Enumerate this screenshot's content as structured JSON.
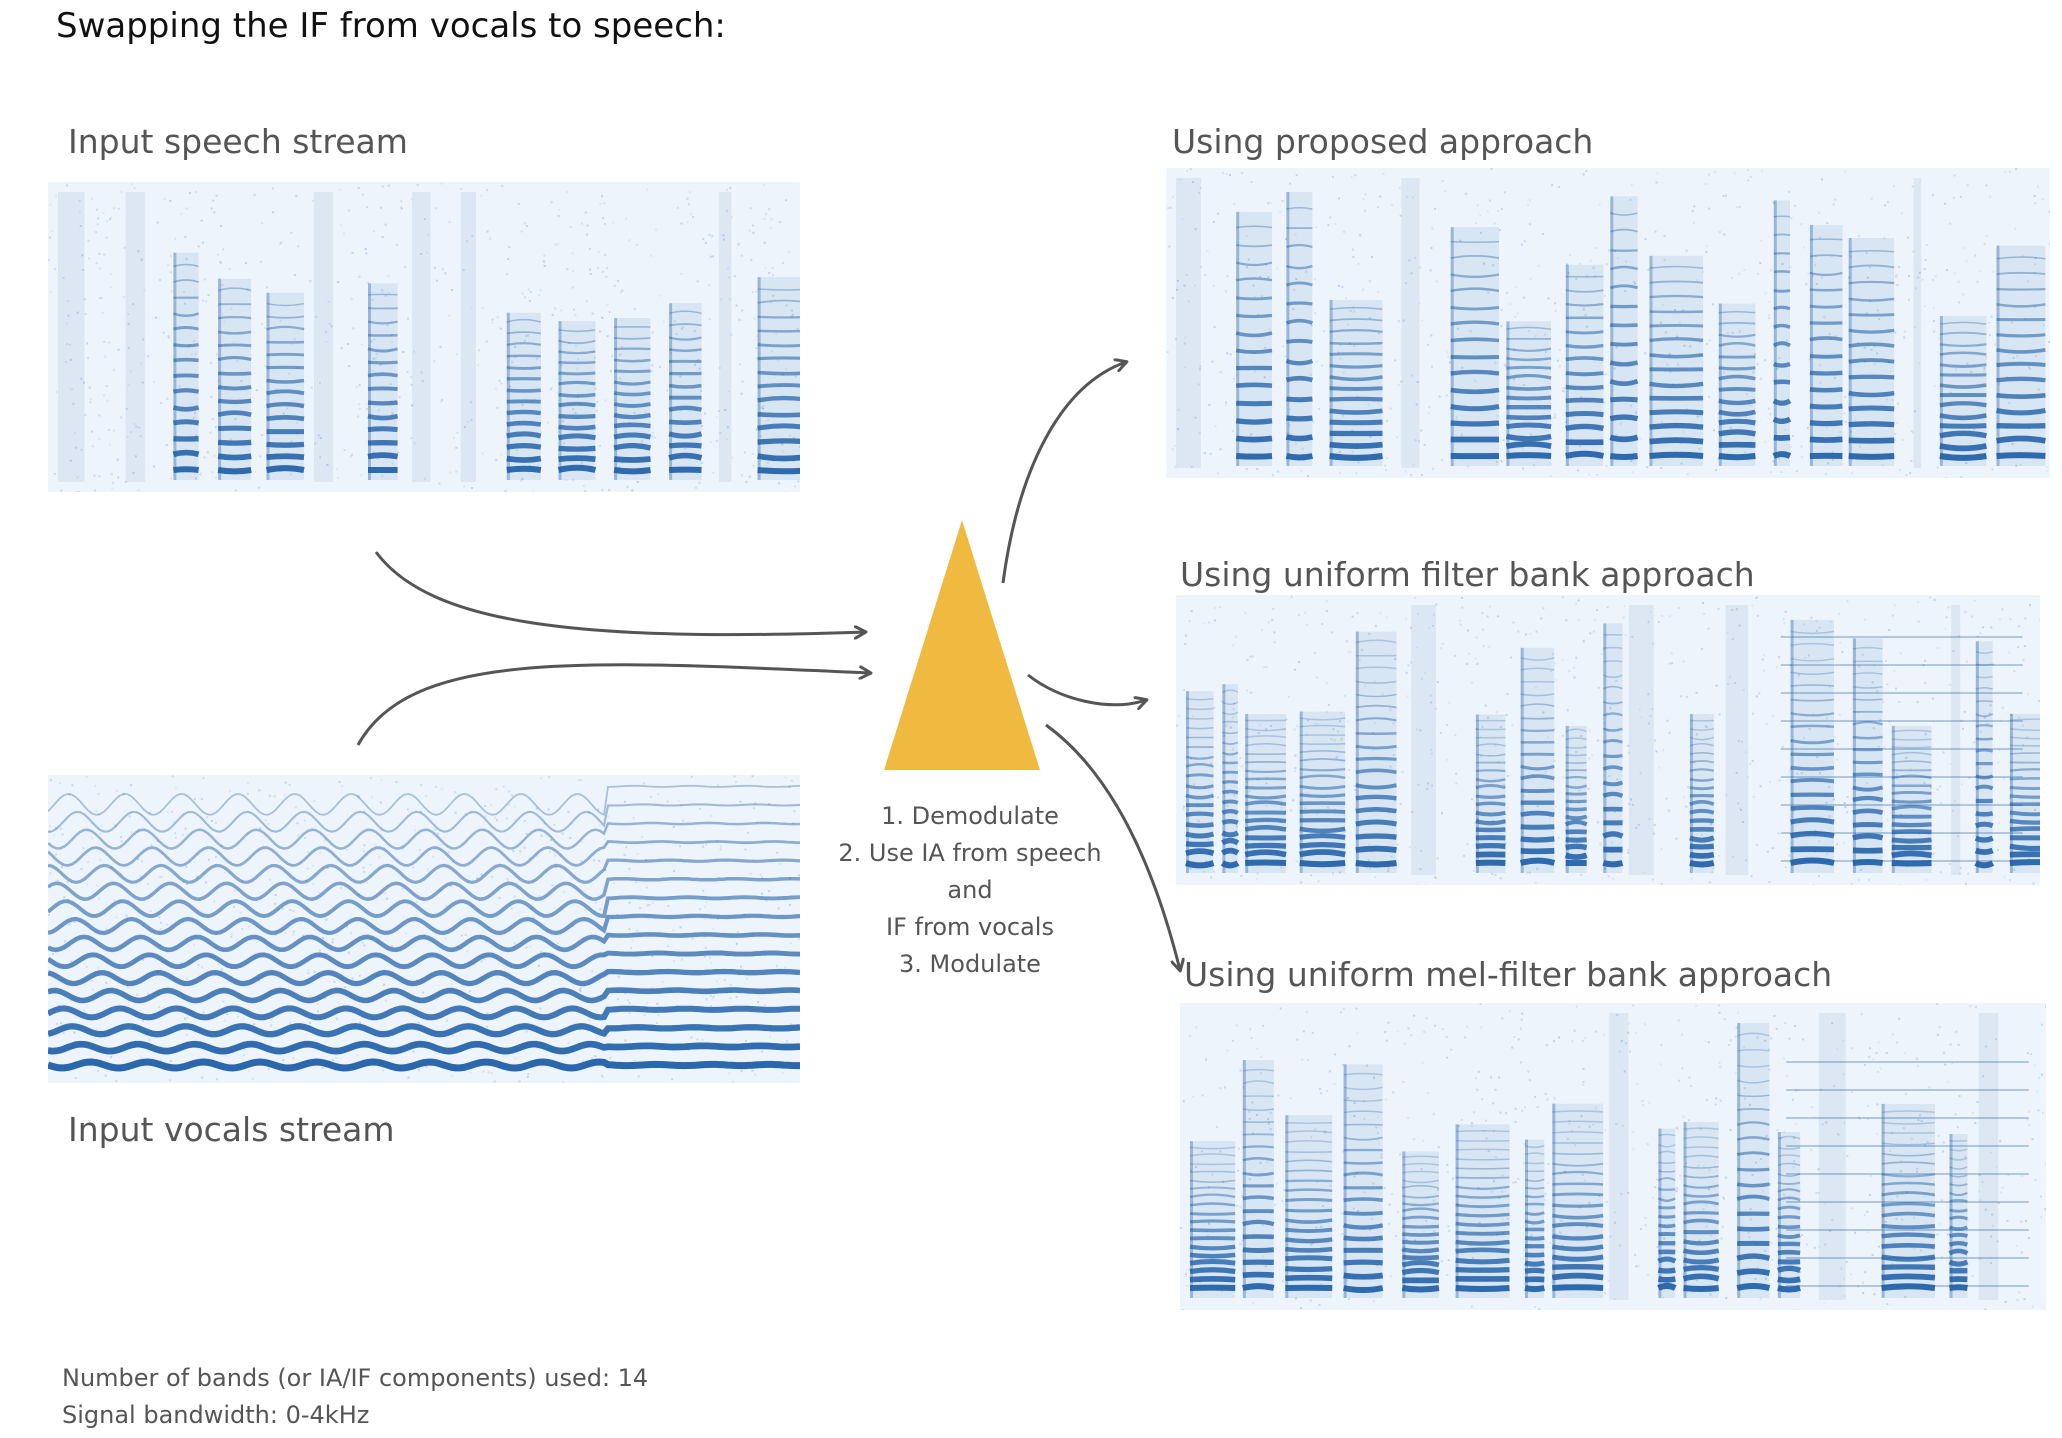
{
  "title": "Swapping the IF from vocals to speech:",
  "inputs": {
    "speech_label": "Input speech stream",
    "vocals_label": "Input vocals stream"
  },
  "process": {
    "steps": [
      "1. Demodulate",
      "2. Use IA from speech",
      "and",
      "IF from vocals",
      "3. Modulate"
    ],
    "triangle_color": "#efba3f"
  },
  "outputs": {
    "proposed_label": "Using proposed approach",
    "uniform_label": "Using uniform filter bank approach",
    "mel_label": "Using uniform mel-filter bank approach"
  },
  "notes": {
    "bands": "Number of bands (or IA/IF components) used: 14",
    "bandwidth": "Signal bandwidth: 0-4kHz"
  },
  "colors": {
    "spectrogram_dark": "#1f5fa8",
    "spectrogram_light": "#eef4fb",
    "arrow": "#555555"
  }
}
